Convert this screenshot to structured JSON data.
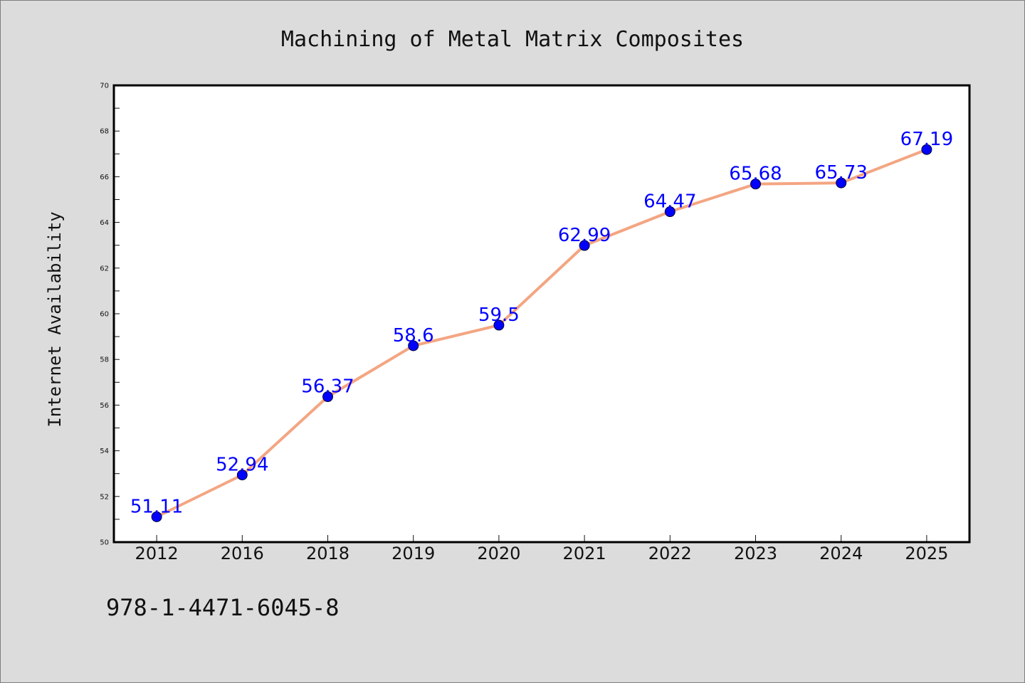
{
  "page": {
    "background": "#dcdcdc",
    "footer_text": "978-1-4471-6045-8"
  },
  "chart_data": {
    "type": "line",
    "title": "Machining of Metal Matrix Composites",
    "xlabel": "",
    "ylabel": "Internet Availability",
    "categories": [
      "2012",
      "2016",
      "2018",
      "2019",
      "2020",
      "2021",
      "2022",
      "2023",
      "2024",
      "2025"
    ],
    "series": [
      {
        "values": [
          51.11,
          52.94,
          56.37,
          58.6,
          59.5,
          62.99,
          64.47,
          65.68,
          65.73,
          67.19
        ],
        "data_labels": [
          "51.11",
          "52.94",
          "56.37",
          "58.6",
          "59.5",
          "62.99",
          "64.47",
          "65.68",
          "65.73",
          "67.19"
        ],
        "line_color": "#f4a582",
        "marker_color": "#0000ff",
        "label_color": "#0000ff"
      }
    ],
    "ylim": [
      50,
      70
    ],
    "yticks": [
      "50",
      "52",
      "54",
      "56",
      "58",
      "60",
      "62",
      "64",
      "66",
      "68",
      "70"
    ],
    "grid": false,
    "legend": "none",
    "plot_background": "#ffffff"
  }
}
